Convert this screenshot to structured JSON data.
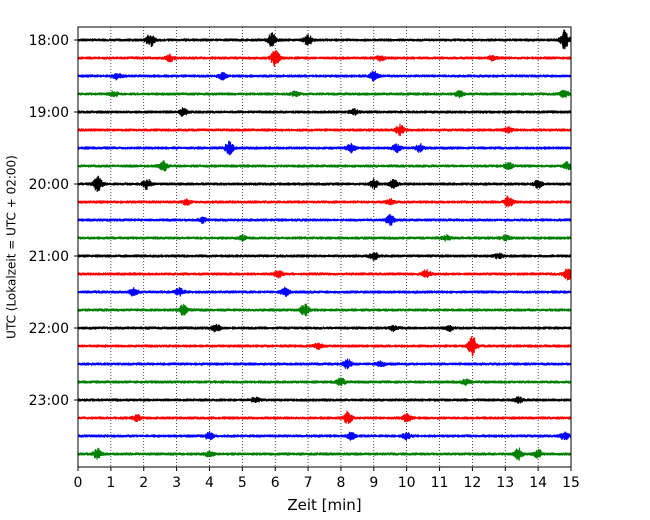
{
  "chart_data": {
    "type": "line",
    "title": "",
    "xlabel": "Zeit  [min]",
    "ylabel": "UTC (Lokalzeit = UTC + 02:00)",
    "xlim": [
      0,
      15
    ],
    "x_ticks": [
      0,
      1,
      2,
      3,
      4,
      5,
      6,
      7,
      8,
      9,
      10,
      11,
      12,
      13,
      14,
      15
    ],
    "y_tick_labels": [
      "18:00",
      "19:00",
      "20:00",
      "21:00",
      "22:00",
      "23:00"
    ],
    "traces_per_hour": 4,
    "minutes_per_trace": 15,
    "grid": "vertical dotted at each minute",
    "legend": "none",
    "color_cycle": [
      "#000000",
      "#ff0000",
      "#0000ff",
      "#008000"
    ],
    "series": [
      {
        "start": "18:00",
        "color": "#000000",
        "events": [
          [
            2.2,
            1.0
          ],
          [
            5.9,
            1.1
          ],
          [
            7.0,
            0.8
          ],
          [
            14.8,
            1.5
          ]
        ]
      },
      {
        "start": "18:15",
        "color": "#ff0000",
        "events": [
          [
            2.8,
            0.5
          ],
          [
            6.0,
            1.3
          ],
          [
            9.2,
            0.4
          ],
          [
            12.6,
            0.4
          ]
        ]
      },
      {
        "start": "18:30",
        "color": "#0000ff",
        "events": [
          [
            1.2,
            0.5
          ],
          [
            4.4,
            0.5
          ],
          [
            9.0,
            0.8
          ]
        ]
      },
      {
        "start": "18:45",
        "color": "#008000",
        "events": [
          [
            1.1,
            0.4
          ],
          [
            6.6,
            0.4
          ],
          [
            11.6,
            0.5
          ],
          [
            14.8,
            0.6
          ]
        ]
      },
      {
        "start": "19:00",
        "color": "#000000",
        "events": [
          [
            3.2,
            0.6
          ],
          [
            8.4,
            0.4
          ]
        ]
      },
      {
        "start": "19:15",
        "color": "#ff0000",
        "events": [
          [
            9.8,
            0.8
          ],
          [
            13.1,
            0.4
          ]
        ]
      },
      {
        "start": "19:30",
        "color": "#0000ff",
        "events": [
          [
            4.6,
            1.0
          ],
          [
            8.3,
            0.7
          ],
          [
            9.7,
            0.6
          ],
          [
            10.4,
            0.6
          ]
        ]
      },
      {
        "start": "19:45",
        "color": "#008000",
        "events": [
          [
            2.6,
            0.8
          ],
          [
            13.1,
            0.5
          ],
          [
            14.9,
            0.6
          ]
        ]
      },
      {
        "start": "20:00",
        "color": "#000000",
        "events": [
          [
            0.6,
            1.2
          ],
          [
            2.1,
            0.8
          ],
          [
            9.0,
            0.7
          ],
          [
            9.6,
            0.6
          ],
          [
            14.0,
            0.6
          ]
        ]
      },
      {
        "start": "20:15",
        "color": "#ff0000",
        "events": [
          [
            3.3,
            0.4
          ],
          [
            13.1,
            0.9
          ],
          [
            9.5,
            0.4
          ]
        ]
      },
      {
        "start": "20:30",
        "color": "#0000ff",
        "events": [
          [
            3.8,
            0.4
          ],
          [
            9.5,
            0.8
          ]
        ]
      },
      {
        "start": "20:45",
        "color": "#008000",
        "events": [
          [
            5.0,
            0.4
          ],
          [
            11.2,
            0.4
          ],
          [
            13.0,
            0.4
          ]
        ]
      },
      {
        "start": "21:00",
        "color": "#000000",
        "events": [
          [
            9.0,
            0.6
          ],
          [
            12.8,
            0.4
          ]
        ]
      },
      {
        "start": "21:15",
        "color": "#ff0000",
        "events": [
          [
            6.1,
            0.6
          ],
          [
            10.6,
            0.6
          ],
          [
            14.9,
            0.9
          ]
        ]
      },
      {
        "start": "21:30",
        "color": "#0000ff",
        "events": [
          [
            1.7,
            0.6
          ],
          [
            3.1,
            0.6
          ],
          [
            6.3,
            0.6
          ]
        ]
      },
      {
        "start": "21:45",
        "color": "#008000",
        "events": [
          [
            3.2,
            0.8
          ],
          [
            6.9,
            0.9
          ]
        ]
      },
      {
        "start": "22:00",
        "color": "#000000",
        "events": [
          [
            4.2,
            0.6
          ],
          [
            9.6,
            0.4
          ],
          [
            11.3,
            0.4
          ]
        ]
      },
      {
        "start": "22:15",
        "color": "#ff0000",
        "events": [
          [
            12.0,
            1.6
          ],
          [
            7.3,
            0.4
          ]
        ]
      },
      {
        "start": "22:30",
        "color": "#0000ff",
        "events": [
          [
            8.2,
            0.7
          ],
          [
            9.2,
            0.5
          ]
        ]
      },
      {
        "start": "22:45",
        "color": "#008000",
        "events": [
          [
            8.0,
            0.6
          ],
          [
            11.8,
            0.4
          ]
        ]
      },
      {
        "start": "23:00",
        "color": "#000000",
        "events": [
          [
            5.4,
            0.4
          ],
          [
            13.4,
            0.4
          ]
        ]
      },
      {
        "start": "23:15",
        "color": "#ff0000",
        "events": [
          [
            8.2,
            1.0
          ],
          [
            10.0,
            0.6
          ],
          [
            1.8,
            0.5
          ]
        ]
      },
      {
        "start": "23:30",
        "color": "#0000ff",
        "events": [
          [
            4.0,
            0.6
          ],
          [
            8.3,
            0.6
          ],
          [
            10.0,
            0.5
          ],
          [
            14.8,
            0.6
          ]
        ]
      },
      {
        "start": "23:45",
        "color": "#008000",
        "events": [
          [
            0.6,
            0.8
          ],
          [
            13.4,
            0.9
          ],
          [
            14.0,
            0.6
          ],
          [
            4.0,
            0.4
          ]
        ]
      }
    ]
  }
}
